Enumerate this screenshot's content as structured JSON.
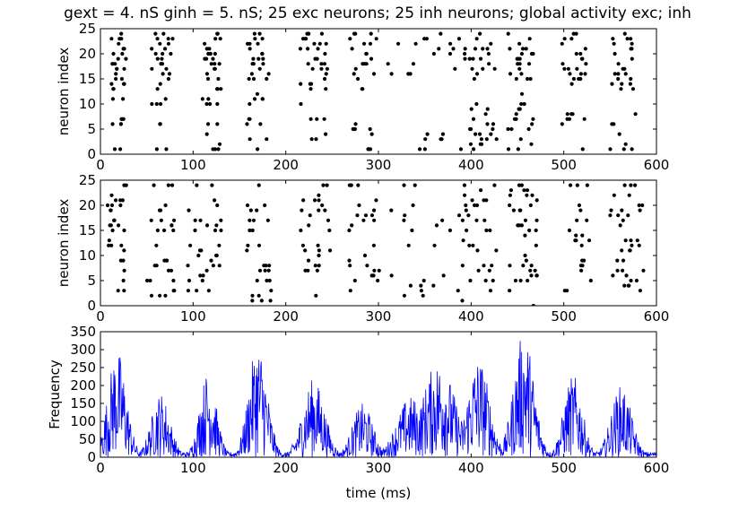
{
  "title": "gext = 4. nS ginh = 5. nS; 25 exc neurons; 25 inh neurons; global activity exc; inh",
  "colors": {
    "raster": "#000000",
    "rate": "#0000ff",
    "axes": "#000000",
    "background": "#ffffff"
  },
  "chart_data": [
    {
      "type": "scatter",
      "title": "",
      "xlabel": "",
      "ylabel": "neuron index",
      "xlim": [
        0,
        600
      ],
      "ylim": [
        0,
        25
      ],
      "xticks": [
        0,
        100,
        200,
        300,
        400,
        500,
        600
      ],
      "yticks": [
        0,
        5,
        10,
        15,
        20,
        25
      ],
      "grid": false,
      "bursts": [
        {
          "x": 10,
          "x_end": 28,
          "neurons": [
            1,
            6,
            7,
            11,
            13,
            14,
            15,
            16,
            17,
            18,
            19,
            20,
            21,
            22,
            23,
            24
          ]
        },
        {
          "x": 55,
          "x_end": 78,
          "neurons": [
            1,
            6,
            10,
            11,
            13,
            14,
            15,
            16,
            17,
            18,
            19,
            20,
            21,
            22,
            23,
            24
          ]
        },
        {
          "x": 110,
          "x_end": 130,
          "neurons": [
            1,
            2,
            4,
            6,
            10,
            11,
            13,
            15,
            16,
            17,
            18,
            19,
            20,
            21,
            22,
            23,
            24
          ]
        },
        {
          "x": 158,
          "x_end": 182,
          "neurons": [
            1,
            3,
            6,
            7,
            10,
            11,
            12,
            15,
            16,
            17,
            18,
            19,
            20,
            21,
            22,
            23,
            24
          ]
        },
        {
          "x": 215,
          "x_end": 245,
          "neurons": [
            3,
            4,
            7,
            10,
            13,
            14,
            15,
            16,
            17,
            18,
            19,
            20,
            21,
            22,
            23,
            24
          ]
        },
        {
          "x": 268,
          "x_end": 298,
          "neurons": [
            1,
            4,
            5,
            6,
            13,
            15,
            16,
            17,
            18,
            19,
            20,
            21,
            22,
            23,
            24
          ]
        },
        {
          "x": 310,
          "x_end": 395,
          "neurons": [
            1,
            3,
            4,
            16,
            17,
            18,
            19,
            20,
            21,
            22,
            23,
            24
          ]
        },
        {
          "x": 398,
          "x_end": 428,
          "neurons": [
            1,
            2,
            3,
            4,
            5,
            6,
            7,
            8,
            9,
            10,
            15,
            16,
            17,
            18,
            19,
            20,
            21,
            22,
            23,
            24
          ]
        },
        {
          "x": 438,
          "x_end": 468,
          "neurons": [
            1,
            2,
            3,
            5,
            6,
            7,
            8,
            9,
            10,
            12,
            15,
            16,
            17,
            18,
            19,
            20,
            21,
            22,
            23,
            24
          ]
        },
        {
          "x": 498,
          "x_end": 525,
          "neurons": [
            1,
            6,
            7,
            8,
            14,
            15,
            16,
            17,
            18,
            19,
            20,
            21,
            22,
            23,
            24
          ]
        },
        {
          "x": 550,
          "x_end": 578,
          "neurons": [
            1,
            2,
            4,
            6,
            8,
            13,
            14,
            15,
            16,
            17,
            18,
            19,
            20,
            21,
            22,
            23,
            24
          ]
        }
      ]
    },
    {
      "type": "scatter",
      "title": "",
      "xlabel": "",
      "ylabel": "neuron index",
      "xlim": [
        0,
        600
      ],
      "ylim": [
        0,
        25
      ],
      "xticks": [
        0,
        100,
        200,
        300,
        400,
        500,
        600
      ],
      "yticks": [
        0,
        5,
        10,
        15,
        20,
        25
      ],
      "grid": false,
      "bursts": [
        {
          "x": 5,
          "x_end": 28,
          "neurons": [
            3,
            5,
            7,
            9,
            11,
            12,
            13,
            15,
            16,
            17,
            19,
            20,
            21,
            22,
            24
          ]
        },
        {
          "x": 50,
          "x_end": 80,
          "neurons": [
            2,
            3,
            5,
            7,
            8,
            9,
            12,
            15,
            16,
            17,
            19,
            20,
            24
          ]
        },
        {
          "x": 92,
          "x_end": 135,
          "neurons": [
            3,
            5,
            6,
            7,
            8,
            9,
            10,
            11,
            12,
            15,
            16,
            17,
            19,
            20,
            21,
            24
          ]
        },
        {
          "x": 158,
          "x_end": 185,
          "neurons": [
            1,
            2,
            3,
            5,
            7,
            8,
            11,
            12,
            15,
            17,
            19,
            20,
            24
          ]
        },
        {
          "x": 215,
          "x_end": 250,
          "neurons": [
            2,
            7,
            8,
            9,
            10,
            11,
            12,
            15,
            16,
            17,
            18,
            19,
            20,
            21,
            22,
            24
          ]
        },
        {
          "x": 268,
          "x_end": 305,
          "neurons": [
            3,
            5,
            6,
            7,
            8,
            9,
            10,
            12,
            15,
            16,
            17,
            18,
            19,
            20,
            21,
            24
          ]
        },
        {
          "x": 310,
          "x_end": 400,
          "neurons": [
            1,
            2,
            3,
            4,
            5,
            6,
            12,
            15,
            16,
            17,
            18,
            19,
            20,
            24
          ]
        },
        {
          "x": 390,
          "x_end": 430,
          "neurons": [
            3,
            5,
            7,
            8,
            11,
            12,
            13,
            15,
            17,
            18,
            19,
            20,
            21,
            22,
            23,
            24
          ]
        },
        {
          "x": 440,
          "x_end": 472,
          "neurons": [
            0,
            3,
            5,
            6,
            7,
            8,
            9,
            10,
            12,
            14,
            15,
            16,
            17,
            19,
            20,
            21,
            22,
            23,
            24
          ]
        },
        {
          "x": 500,
          "x_end": 530,
          "neurons": [
            3,
            5,
            7,
            8,
            9,
            12,
            13,
            14,
            15,
            17,
            19,
            20,
            24
          ]
        },
        {
          "x": 550,
          "x_end": 588,
          "neurons": [
            3,
            4,
            5,
            6,
            7,
            9,
            11,
            12,
            13,
            16,
            17,
            18,
            19,
            20,
            22,
            24
          ]
        }
      ]
    },
    {
      "type": "line",
      "title": "",
      "xlabel": "time (ms)",
      "ylabel": "Frequency",
      "xlim": [
        0,
        600
      ],
      "ylim": [
        0,
        350
      ],
      "xticks": [
        0,
        100,
        200,
        300,
        400,
        500,
        600
      ],
      "yticks": [
        0,
        50,
        100,
        150,
        200,
        250,
        300,
        350
      ],
      "grid": false,
      "peaks": [
        {
          "t": 18,
          "height": 300,
          "width": 10
        },
        {
          "t": 65,
          "height": 180,
          "width": 10
        },
        {
          "t": 116,
          "height": 240,
          "width": 9
        },
        {
          "t": 170,
          "height": 320,
          "width": 10
        },
        {
          "t": 230,
          "height": 220,
          "width": 12
        },
        {
          "t": 283,
          "height": 150,
          "width": 11
        },
        {
          "t": 335,
          "height": 170,
          "width": 15
        },
        {
          "t": 365,
          "height": 270,
          "width": 18
        },
        {
          "t": 408,
          "height": 280,
          "width": 12
        },
        {
          "t": 457,
          "height": 350,
          "width": 11
        },
        {
          "t": 510,
          "height": 230,
          "width": 10
        },
        {
          "t": 562,
          "height": 200,
          "width": 11
        }
      ],
      "baseline": 15
    }
  ]
}
